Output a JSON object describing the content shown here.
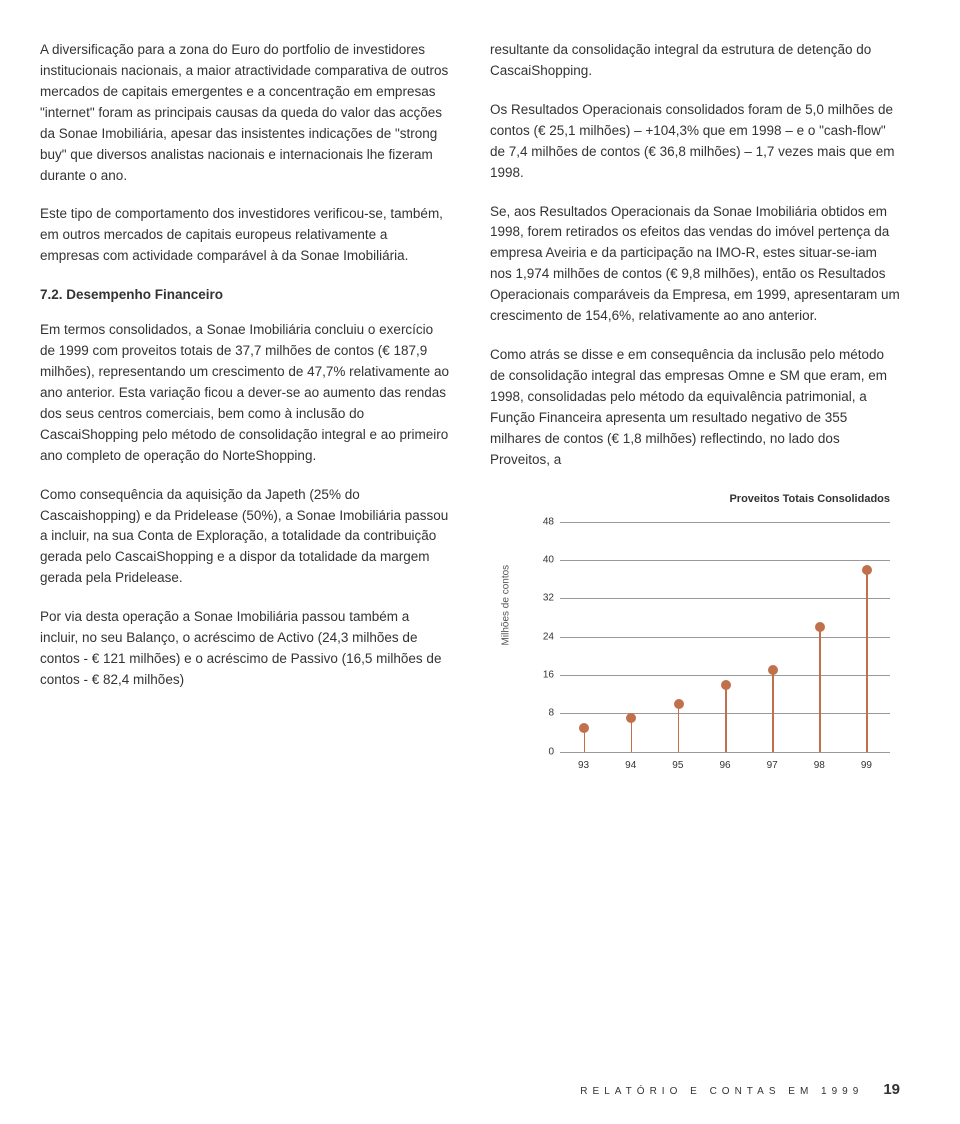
{
  "left": {
    "p1": "A diversificação para a zona do Euro do portfolio de investidores institucionais nacionais, a maior atractividade comparativa de outros mercados de capitais emergentes e a concentração em empresas \"internet\" foram as principais causas da queda do valor das acções da Sonae Imobiliária, apesar das insistentes indicações de \"strong buy\" que diversos analistas nacionais e internacionais lhe fizeram durante o ano.",
    "p2": "Este tipo de comportamento dos investidores verificou-se, também, em outros mercados de capitais europeus relativamente a empresas com actividade comparável à da Sonae Imobiliária.",
    "section": "7.2. Desempenho Financeiro",
    "p3": "Em termos consolidados, a Sonae Imobiliária concluiu o exercício de 1999 com proveitos totais de 37,7 milhões de contos (€ 187,9 milhões), representando um crescimento de 47,7% relativamente ao ano anterior. Esta variação ficou a dever-se ao aumento das rendas dos seus centros comerciais, bem como à inclusão do CascaiShopping pelo método de consolidação integral e ao primeiro ano completo de operação do NorteShopping.",
    "p4": "Como consequência da aquisição da Japeth (25% do Cascaishopping) e da Pridelease (50%), a Sonae Imobiliária passou a incluir, na sua Conta de Exploração, a totalidade da contribuição gerada pelo CascaiShopping e a dispor da totalidade da margem gerada pela Pridelease.",
    "p5": "Por via desta operação a Sonae Imobiliária passou também a incluir, no seu Balanço, o acréscimo de Activo (24,3 milhões de contos - € 121 milhões) e o acréscimo de Passivo (16,5 milhões de contos - € 82,4 milhões)"
  },
  "right": {
    "p1": "resultante da consolidação integral da estrutura de detenção do CascaiShopping.",
    "p2": "Os Resultados Operacionais consolidados foram de 5,0 milhões de contos (€ 25,1 milhões) – +104,3% que em 1998 – e o \"cash-flow\" de 7,4 milhões de contos (€ 36,8 milhões) – 1,7 vezes mais que em 1998.",
    "p3": "Se, aos Resultados Operacionais da Sonae Imobiliária obtidos em 1998, forem retirados os efeitos das vendas do imóvel pertença da empresa Aveiria e da participação na IMO-R, estes situar-se-iam nos 1,974 milhões de contos (€ 9,8 milhões), então os Resultados Operacionais comparáveis da Empresa, em 1999, apresentaram um crescimento de 154,6%, relativamente ao ano anterior.",
    "p4": "Como atrás se disse e em consequência da inclusão pelo método de consolidação integral das empresas Omne e SM que eram, em 1998, consolidadas pelo método da equivalência patrimonial, a Função Financeira apresenta um resultado negativo de 355 milhares de contos (€ 1,8 milhões) reflectindo, no lado dos Proveitos, a"
  },
  "chart": {
    "title": "Proveitos Totais Consolidados",
    "ylabel": "Milhões de contos",
    "type": "stem",
    "ylim": [
      0,
      48
    ],
    "yticks": [
      0,
      8,
      16,
      24,
      32,
      40,
      48
    ],
    "categories": [
      "93",
      "94",
      "95",
      "96",
      "97",
      "98",
      "99"
    ],
    "values": [
      5,
      7,
      10,
      14,
      17,
      26,
      38
    ],
    "stem_color": "#c0704a",
    "dot_color": "#c0704a",
    "grid_color": "#999999",
    "background_color": "#ffffff",
    "label_fontsize": 10
  },
  "footer": {
    "text": "RELATÓRIO E CONTAS EM 1999",
    "page": "19"
  }
}
